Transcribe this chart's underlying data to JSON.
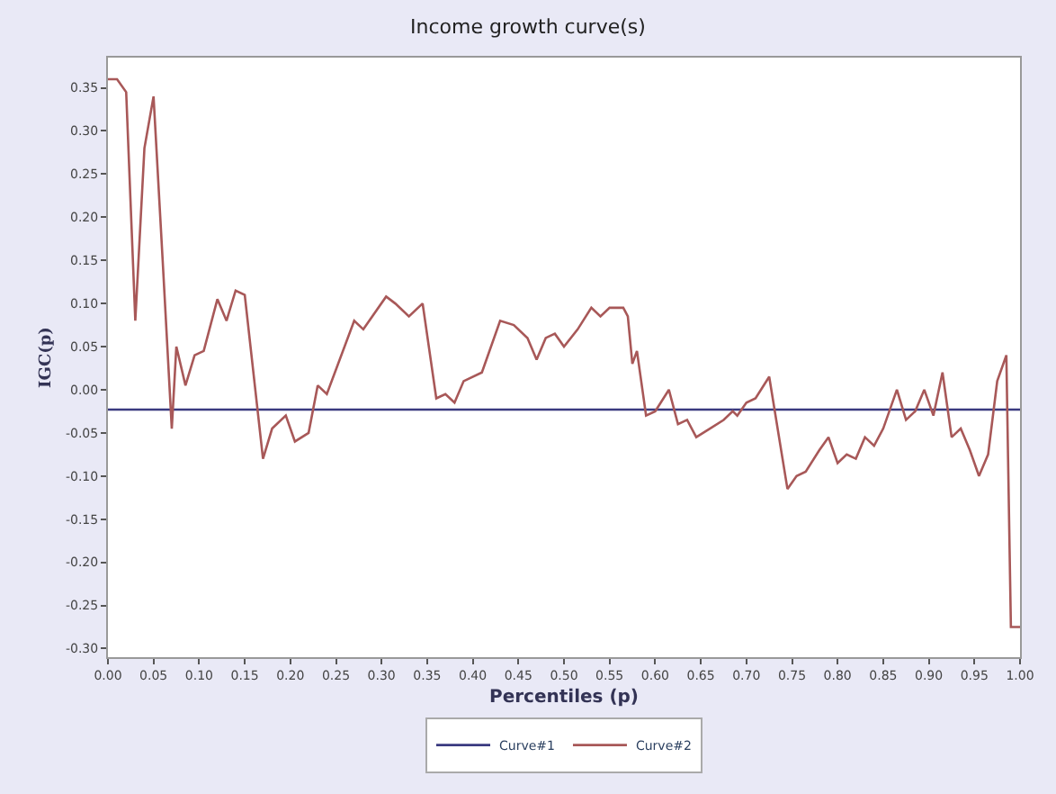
{
  "chart_data": {
    "type": "line",
    "title": "Income growth curve(s)",
    "xlabel": "Percentiles (p)",
    "ylabel": "IGC(p)",
    "xlim": [
      0,
      1
    ],
    "ylim": [
      -0.31,
      0.385
    ],
    "xticks": [
      {
        "value": 0,
        "label": "0.00"
      },
      {
        "value": 0.05,
        "label": "0.05"
      },
      {
        "value": 0.1,
        "label": "0.10"
      },
      {
        "value": 0.15,
        "label": "0.15"
      },
      {
        "value": 0.2,
        "label": "0.20"
      },
      {
        "value": 0.25,
        "label": "0.25"
      },
      {
        "value": 0.3,
        "label": "0.30"
      },
      {
        "value": 0.35,
        "label": "0.35"
      },
      {
        "value": 0.4,
        "label": "0.40"
      },
      {
        "value": 0.45,
        "label": "0.45"
      },
      {
        "value": 0.5,
        "label": "0.50"
      },
      {
        "value": 0.55,
        "label": "0.55"
      },
      {
        "value": 0.6,
        "label": "0.60"
      },
      {
        "value": 0.65,
        "label": "0.65"
      },
      {
        "value": 0.7,
        "label": "0.70"
      },
      {
        "value": 0.75,
        "label": "0.75"
      },
      {
        "value": 0.8,
        "label": "0.80"
      },
      {
        "value": 0.85,
        "label": "0.85"
      },
      {
        "value": 0.9,
        "label": "0.90"
      },
      {
        "value": 0.95,
        "label": "0.95"
      },
      {
        "value": 1,
        "label": "1.00"
      }
    ],
    "yticks": [
      {
        "value": -0.3,
        "label": "-0.30"
      },
      {
        "value": -0.25,
        "label": "-0.25"
      },
      {
        "value": -0.2,
        "label": "-0.20"
      },
      {
        "value": -0.15,
        "label": "-0.15"
      },
      {
        "value": -0.1,
        "label": "-0.10"
      },
      {
        "value": -0.05,
        "label": "-0.05"
      },
      {
        "value": 0,
        "label": "0.00"
      },
      {
        "value": 0.05,
        "label": "0.05"
      },
      {
        "value": 0.1,
        "label": "0.10"
      },
      {
        "value": 0.15,
        "label": "0.15"
      },
      {
        "value": 0.2,
        "label": "0.20"
      },
      {
        "value": 0.25,
        "label": "0.25"
      },
      {
        "value": 0.3,
        "label": "0.30"
      },
      {
        "value": 0.35,
        "label": "0.35"
      }
    ],
    "legend": "bottom",
    "marker": "none",
    "line_style": "solid",
    "series": [
      {
        "name": "Curve#1",
        "color": "#3a3a80",
        "x": [
          0,
          1
        ],
        "values": [
          -0.023,
          -0.023
        ]
      },
      {
        "name": "Curve#2",
        "color": "#a85858",
        "x": [
          0,
          0.01,
          0.02,
          0.03,
          0.04,
          0.05,
          0.06,
          0.07,
          0.075,
          0.085,
          0.095,
          0.105,
          0.12,
          0.13,
          0.14,
          0.15,
          0.17,
          0.18,
          0.195,
          0.205,
          0.22,
          0.23,
          0.24,
          0.27,
          0.28,
          0.305,
          0.315,
          0.33,
          0.345,
          0.36,
          0.37,
          0.38,
          0.39,
          0.41,
          0.43,
          0.445,
          0.46,
          0.47,
          0.48,
          0.49,
          0.5,
          0.515,
          0.53,
          0.54,
          0.55,
          0.565,
          0.57,
          0.575,
          0.58,
          0.59,
          0.6,
          0.615,
          0.625,
          0.635,
          0.645,
          0.66,
          0.675,
          0.685,
          0.69,
          0.7,
          0.71,
          0.725,
          0.745,
          0.755,
          0.765,
          0.78,
          0.79,
          0.8,
          0.81,
          0.82,
          0.83,
          0.84,
          0.85,
          0.865,
          0.875,
          0.885,
          0.895,
          0.905,
          0.915,
          0.925,
          0.935,
          0.945,
          0.955,
          0.965,
          0.975,
          0.985,
          0.99,
          1.0
        ],
        "values": [
          0.36,
          0.36,
          0.345,
          0.08,
          0.28,
          0.34,
          0.15,
          -0.045,
          0.05,
          0.005,
          0.04,
          0.045,
          0.105,
          0.08,
          0.115,
          0.11,
          -0.08,
          -0.045,
          -0.03,
          -0.06,
          -0.05,
          0.005,
          -0.005,
          0.08,
          0.07,
          0.108,
          0.1,
          0.085,
          0.1,
          -0.01,
          -0.005,
          -0.015,
          0.01,
          0.02,
          0.08,
          0.075,
          0.06,
          0.035,
          0.06,
          0.065,
          0.05,
          0.07,
          0.095,
          0.085,
          0.095,
          0.095,
          0.085,
          0.03,
          0.045,
          -0.03,
          -0.025,
          0.0,
          -0.04,
          -0.035,
          -0.055,
          -0.045,
          -0.035,
          -0.025,
          -0.03,
          -0.015,
          -0.01,
          0.015,
          -0.115,
          -0.1,
          -0.095,
          -0.07,
          -0.055,
          -0.085,
          -0.075,
          -0.08,
          -0.055,
          -0.065,
          -0.045,
          0.0,
          -0.035,
          -0.025,
          0.0,
          -0.03,
          0.02,
          -0.055,
          -0.045,
          -0.07,
          -0.1,
          -0.075,
          0.01,
          0.04,
          -0.275,
          -0.275
        ]
      }
    ]
  }
}
